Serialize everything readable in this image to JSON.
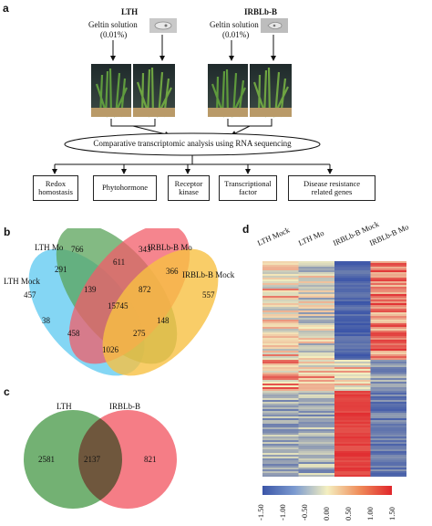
{
  "panel_a": {
    "letter": "a",
    "lth_title": "LTH",
    "irblb_title": "IRBLb-B",
    "geltin_left": "Geltin solution",
    "conc_left": "(0.01%)",
    "geltin_right": "Geltin solution",
    "conc_right": "(0.01%)",
    "analysis": "Comparative transcriptomic analysis using RNA sequencing",
    "categories": [
      {
        "l1": "Redox",
        "l2": "homostasis"
      },
      {
        "l1": "Phytohormone",
        "l2": ""
      },
      {
        "l1": "Receptor",
        "l2": "kinase"
      },
      {
        "l1": "Transcriptional",
        "l2": "factor"
      },
      {
        "l1": "Disease resistance",
        "l2": "related genes"
      }
    ]
  },
  "panel_b": {
    "letter": "b",
    "sets": [
      {
        "label": "LTH Mock",
        "color": "#5bc8f0"
      },
      {
        "label": "LTH Mo",
        "color": "#5aa35a"
      },
      {
        "label": "IRBLb-B Mo",
        "color": "#f25c68"
      },
      {
        "label": "IRBLb-B Mock",
        "color": "#f8c042"
      }
    ],
    "regions": {
      "lth_mock_only": "457",
      "lth_mo_only": "766",
      "irblb_mo_only": "343",
      "irblb_mock_only": "557",
      "mock_lthmo": "291",
      "lthmo_irbmo": "611",
      "irbmo_irbmock": "366",
      "lthmock_irbmock": "1026",
      "mock_lthmo_irbmo": "139",
      "lthmo_irbmo_irbmock": "872",
      "lthmock_irbmo": "38",
      "lthmo_irbmock": "148",
      "lthmock_lthmo_irbmock": "458",
      "lthmock_irbmo_irbmock": "275",
      "all": "15745"
    }
  },
  "panel_c": {
    "letter": "c",
    "left_label": "LTH",
    "right_label": "IRBLb-B",
    "left_only": "2581",
    "both": "2137",
    "right_only": "821",
    "left_color": "#5aa35a",
    "right_color": "#f25c68"
  },
  "panel_d": {
    "letter": "d",
    "columns": [
      "LTH Mock",
      "LTH Mo",
      "IRBLb-B Mock",
      "IRBLb-B Mo"
    ],
    "scale_ticks": [
      "-1.50",
      "-1.00",
      "-0.50",
      "0.00",
      "0.50",
      "1.00",
      "1.50"
    ],
    "scale_range": [
      -1.5,
      1.5
    ],
    "colors": {
      "low": "#3b55a8",
      "mid": "#f4efc0",
      "high": "#e0262b"
    }
  }
}
